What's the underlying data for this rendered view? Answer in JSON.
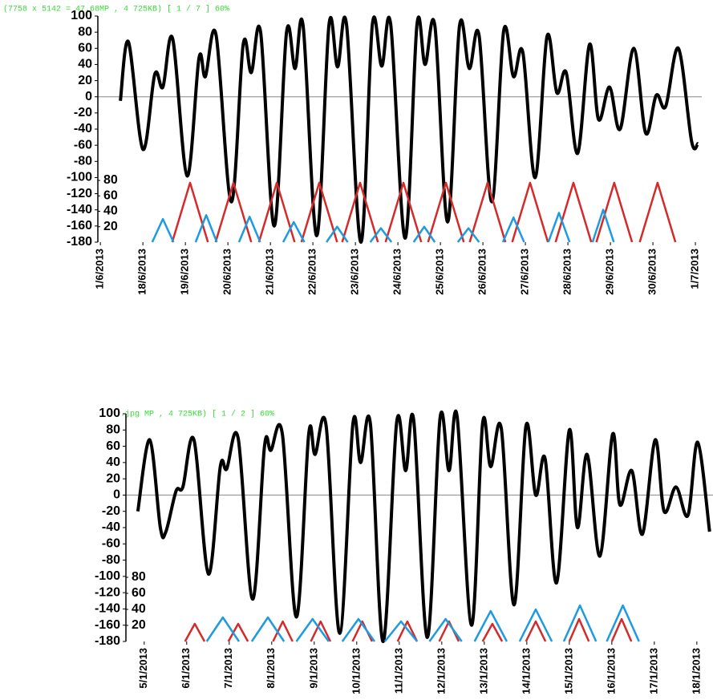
{
  "chart_data": [
    {
      "type": "line",
      "header": "(7758 x 5142 = 47.68MP , 4 725KB) [ 1 / 7 ]  60%",
      "xlim": [
        -0.06,
        14.15
      ],
      "xticks": [
        {
          "value": 0,
          "label": "1/6/2013"
        },
        {
          "value": 1,
          "label": "18/6/2013"
        },
        {
          "value": 2,
          "label": "19/6/2013"
        },
        {
          "value": 3,
          "label": "20/6/2013"
        },
        {
          "value": 4,
          "label": "21/6/2013"
        },
        {
          "value": 5,
          "label": "22/6/2013"
        },
        {
          "value": 6,
          "label": "23/6/2013"
        },
        {
          "value": 7,
          "label": "24/6/2013"
        },
        {
          "value": 8,
          "label": "25/6/2013"
        },
        {
          "value": 9,
          "label": "26/6/2013"
        },
        {
          "value": 10,
          "label": "27/6/2013"
        },
        {
          "value": 11,
          "label": "28/6/2013"
        },
        {
          "value": 12,
          "label": "29/6/2013"
        },
        {
          "value": 13,
          "label": "30/6/2013"
        },
        {
          "value": 14,
          "label": "1/7/2013"
        }
      ],
      "ylim": [
        -180,
        100
      ],
      "yticks": [
        100,
        80,
        60,
        40,
        20,
        0,
        -20,
        -40,
        -60,
        -80,
        -100,
        -120,
        -140,
        -160,
        -180
      ],
      "y2lim": [
        0,
        293
      ],
      "y2ticks": [
        80,
        60,
        40,
        20
      ],
      "series": [
        {
          "color": "#000000",
          "x": [
            0.47,
            0.66,
            1.0,
            1.28,
            1.47,
            1.7,
            2.04,
            2.32,
            2.47,
            2.72,
            3.08,
            3.36,
            3.55,
            3.77,
            4.09,
            4.38,
            4.58,
            4.77,
            5.09,
            5.38,
            5.58,
            5.79,
            6.13,
            6.4,
            6.62,
            6.83,
            7.17,
            7.45,
            7.64,
            7.87,
            8.17,
            8.45,
            8.68,
            8.91,
            9.21,
            9.49,
            9.72,
            9.94,
            10.23,
            10.51,
            10.74,
            10.96,
            11.23,
            11.51,
            11.72,
            11.98,
            12.23,
            12.55,
            12.83,
            13.08,
            13.3,
            13.6,
            13.91,
            14.06
          ],
          "values": [
            -5,
            68,
            -65,
            28,
            12,
            72,
            -98,
            48,
            25,
            77,
            -130,
            65,
            30,
            80,
            -160,
            80,
            35,
            88,
            -172,
            90,
            37,
            90,
            -180,
            90,
            38,
            90,
            -175,
            90,
            40,
            88,
            -155,
            88,
            35,
            76,
            -130,
            82,
            25,
            55,
            -100,
            75,
            5,
            30,
            -70,
            65,
            -28,
            12,
            -40,
            60,
            -45,
            2,
            -12,
            60,
            -55,
            -58
          ]
        },
        {
          "color": "#d42a2a",
          "axis": "y2",
          "x": [
            1.69,
            2.11,
            2.53,
            null,
            2.71,
            3.13,
            3.55,
            null,
            3.73,
            4.15,
            4.57,
            null,
            4.73,
            5.15,
            5.57,
            null,
            5.69,
            6.11,
            6.53,
            null,
            6.71,
            7.13,
            7.55,
            null,
            7.71,
            8.13,
            8.55,
            null,
            8.69,
            9.11,
            9.53,
            null,
            9.69,
            10.11,
            10.53,
            null,
            10.71,
            11.13,
            11.55,
            null,
            11.67,
            12.09,
            12.51,
            null,
            12.69,
            13.11,
            13.53
          ],
          "values": [
            0,
            77,
            0,
            null,
            0,
            77,
            0,
            null,
            0,
            77,
            0,
            null,
            0,
            77,
            0,
            null,
            0,
            77,
            0,
            null,
            0,
            77,
            0,
            null,
            0,
            77,
            0,
            null,
            0,
            77,
            0,
            null,
            0,
            77,
            0,
            null,
            0,
            77,
            0,
            null,
            0,
            77,
            0,
            null,
            0,
            77,
            0
          ]
        },
        {
          "color": "#1e9be0",
          "axis": "y2",
          "x": [
            1.22,
            1.47,
            1.72,
            null,
            2.24,
            2.49,
            2.74,
            null,
            3.26,
            3.51,
            3.76,
            null,
            4.3,
            4.55,
            4.8,
            null,
            5.32,
            5.57,
            5.82,
            null,
            6.35,
            6.6,
            6.85,
            null,
            7.37,
            7.62,
            7.87,
            null,
            8.41,
            8.66,
            8.91,
            null,
            9.47,
            9.72,
            9.97,
            null,
            10.54,
            10.79,
            11.04,
            null,
            11.58,
            11.83,
            12.08
          ],
          "values": [
            0,
            30,
            0,
            null,
            0,
            35,
            0,
            null,
            0,
            33,
            0,
            null,
            0,
            26,
            0,
            null,
            0,
            20,
            0,
            null,
            0,
            18,
            0,
            null,
            0,
            20,
            0,
            null,
            0,
            18,
            0,
            null,
            0,
            32,
            0,
            null,
            0,
            38,
            0,
            null,
            0,
            42,
            0
          ]
        }
      ]
    },
    {
      "type": "line",
      "header": ".jpg    MP , 4 725KB) [ 1 / 2 ]  60%",
      "xlim": [
        -0.43,
        13.38
      ],
      "xticks": [
        {
          "value": 0,
          "label": "5/1/2013"
        },
        {
          "value": 1,
          "label": "6/1/2013"
        },
        {
          "value": 2,
          "label": "7/1/2013"
        },
        {
          "value": 3,
          "label": "8/1/2013"
        },
        {
          "value": 4,
          "label": "9/1/2013"
        },
        {
          "value": 5,
          "label": "10/1/2013"
        },
        {
          "value": 6,
          "label": "11/1/2013"
        },
        {
          "value": 7,
          "label": "12/1/2013"
        },
        {
          "value": 8,
          "label": "13/1/2013"
        },
        {
          "value": 9,
          "label": "14/1/2013"
        },
        {
          "value": 10,
          "label": "15/1/2013"
        },
        {
          "value": 11,
          "label": "16/1/2013"
        },
        {
          "value": 12,
          "label": "17/1/2013"
        },
        {
          "value": 13,
          "label": "18/1/2013"
        }
      ],
      "ylim": [
        -180,
        100
      ],
      "yticks": [
        100,
        80,
        60,
        40,
        20,
        0,
        -20,
        -40,
        -60,
        -80,
        -100,
        -120,
        -140,
        -160,
        -180
      ],
      "y2lim": [
        0,
        284
      ],
      "y2ticks": [
        80,
        60,
        40,
        20
      ],
      "series": [
        {
          "color": "#000000",
          "x": [
            -0.15,
            0.13,
            0.38,
            0.51,
            0.75,
            0.91,
            1.17,
            1.51,
            1.79,
            1.94,
            2.21,
            2.55,
            2.83,
            2.98,
            3.25,
            3.58,
            3.87,
            4.02,
            4.28,
            4.6,
            4.91,
            5.09,
            5.32,
            5.62,
            5.94,
            6.15,
            6.34,
            6.66,
            6.96,
            7.17,
            7.36,
            7.7,
            7.96,
            8.15,
            8.4,
            8.7,
            8.98,
            9.21,
            9.43,
            9.7,
            10.0,
            10.19,
            10.42,
            10.72,
            11.02,
            11.19,
            11.47,
            11.72,
            12.02,
            12.23,
            12.51,
            12.79,
            13.02,
            13.3
          ],
          "values": [
            -20,
            68,
            -40,
            -45,
            5,
            10,
            68,
            -97,
            35,
            32,
            70,
            -128,
            60,
            55,
            75,
            -150,
            75,
            50,
            85,
            -170,
            88,
            40,
            88,
            -180,
            90,
            30,
            92,
            -175,
            95,
            30,
            97,
            -160,
            88,
            35,
            82,
            -135,
            85,
            0,
            45,
            -108,
            80,
            -40,
            50,
            -75,
            75,
            -12,
            30,
            -48,
            68,
            -20,
            10,
            -25,
            65,
            -45
          ]
        },
        {
          "color": "#d42a2a",
          "axis": "y2",
          "x": [
            0.96,
            1.19,
            1.42,
            null,
            1.98,
            2.21,
            2.44,
            null,
            3.03,
            3.26,
            3.49,
            null,
            3.92,
            4.15,
            4.38,
            null,
            4.9,
            5.13,
            5.36,
            null,
            5.96,
            6.19,
            6.42,
            null,
            6.94,
            7.17,
            7.4,
            null,
            7.96,
            8.19,
            8.42,
            null,
            8.98,
            9.21,
            9.44,
            null,
            10.0,
            10.23,
            10.46,
            null,
            11.0,
            11.23,
            11.46
          ],
          "values": [
            0,
            22,
            0,
            null,
            0,
            22,
            0,
            null,
            0,
            25,
            0,
            null,
            0,
            25,
            0,
            null,
            0,
            25,
            0,
            null,
            0,
            25,
            0,
            null,
            0,
            25,
            0,
            null,
            0,
            22,
            0,
            null,
            0,
            25,
            0,
            null,
            0,
            28,
            0,
            null,
            0,
            28,
            0
          ]
        },
        {
          "color": "#1e9be0",
          "axis": "y2",
          "x": [
            1.47,
            1.85,
            2.23,
            null,
            2.53,
            2.91,
            3.29,
            null,
            3.58,
            3.96,
            4.34,
            null,
            4.66,
            5.04,
            5.42,
            null,
            5.66,
            6.04,
            6.42,
            null,
            6.71,
            7.09,
            7.47,
            null,
            7.77,
            8.15,
            8.53,
            null,
            8.83,
            9.21,
            9.59,
            null,
            9.87,
            10.25,
            10.63,
            null,
            10.88,
            11.26,
            11.64
          ],
          "values": [
            0,
            30,
            0,
            null,
            0,
            30,
            0,
            null,
            0,
            28,
            0,
            null,
            0,
            28,
            0,
            null,
            0,
            25,
            0,
            null,
            0,
            28,
            0,
            null,
            0,
            38,
            0,
            null,
            0,
            40,
            0,
            null,
            0,
            45,
            0,
            null,
            0,
            45,
            0
          ]
        }
      ]
    }
  ]
}
